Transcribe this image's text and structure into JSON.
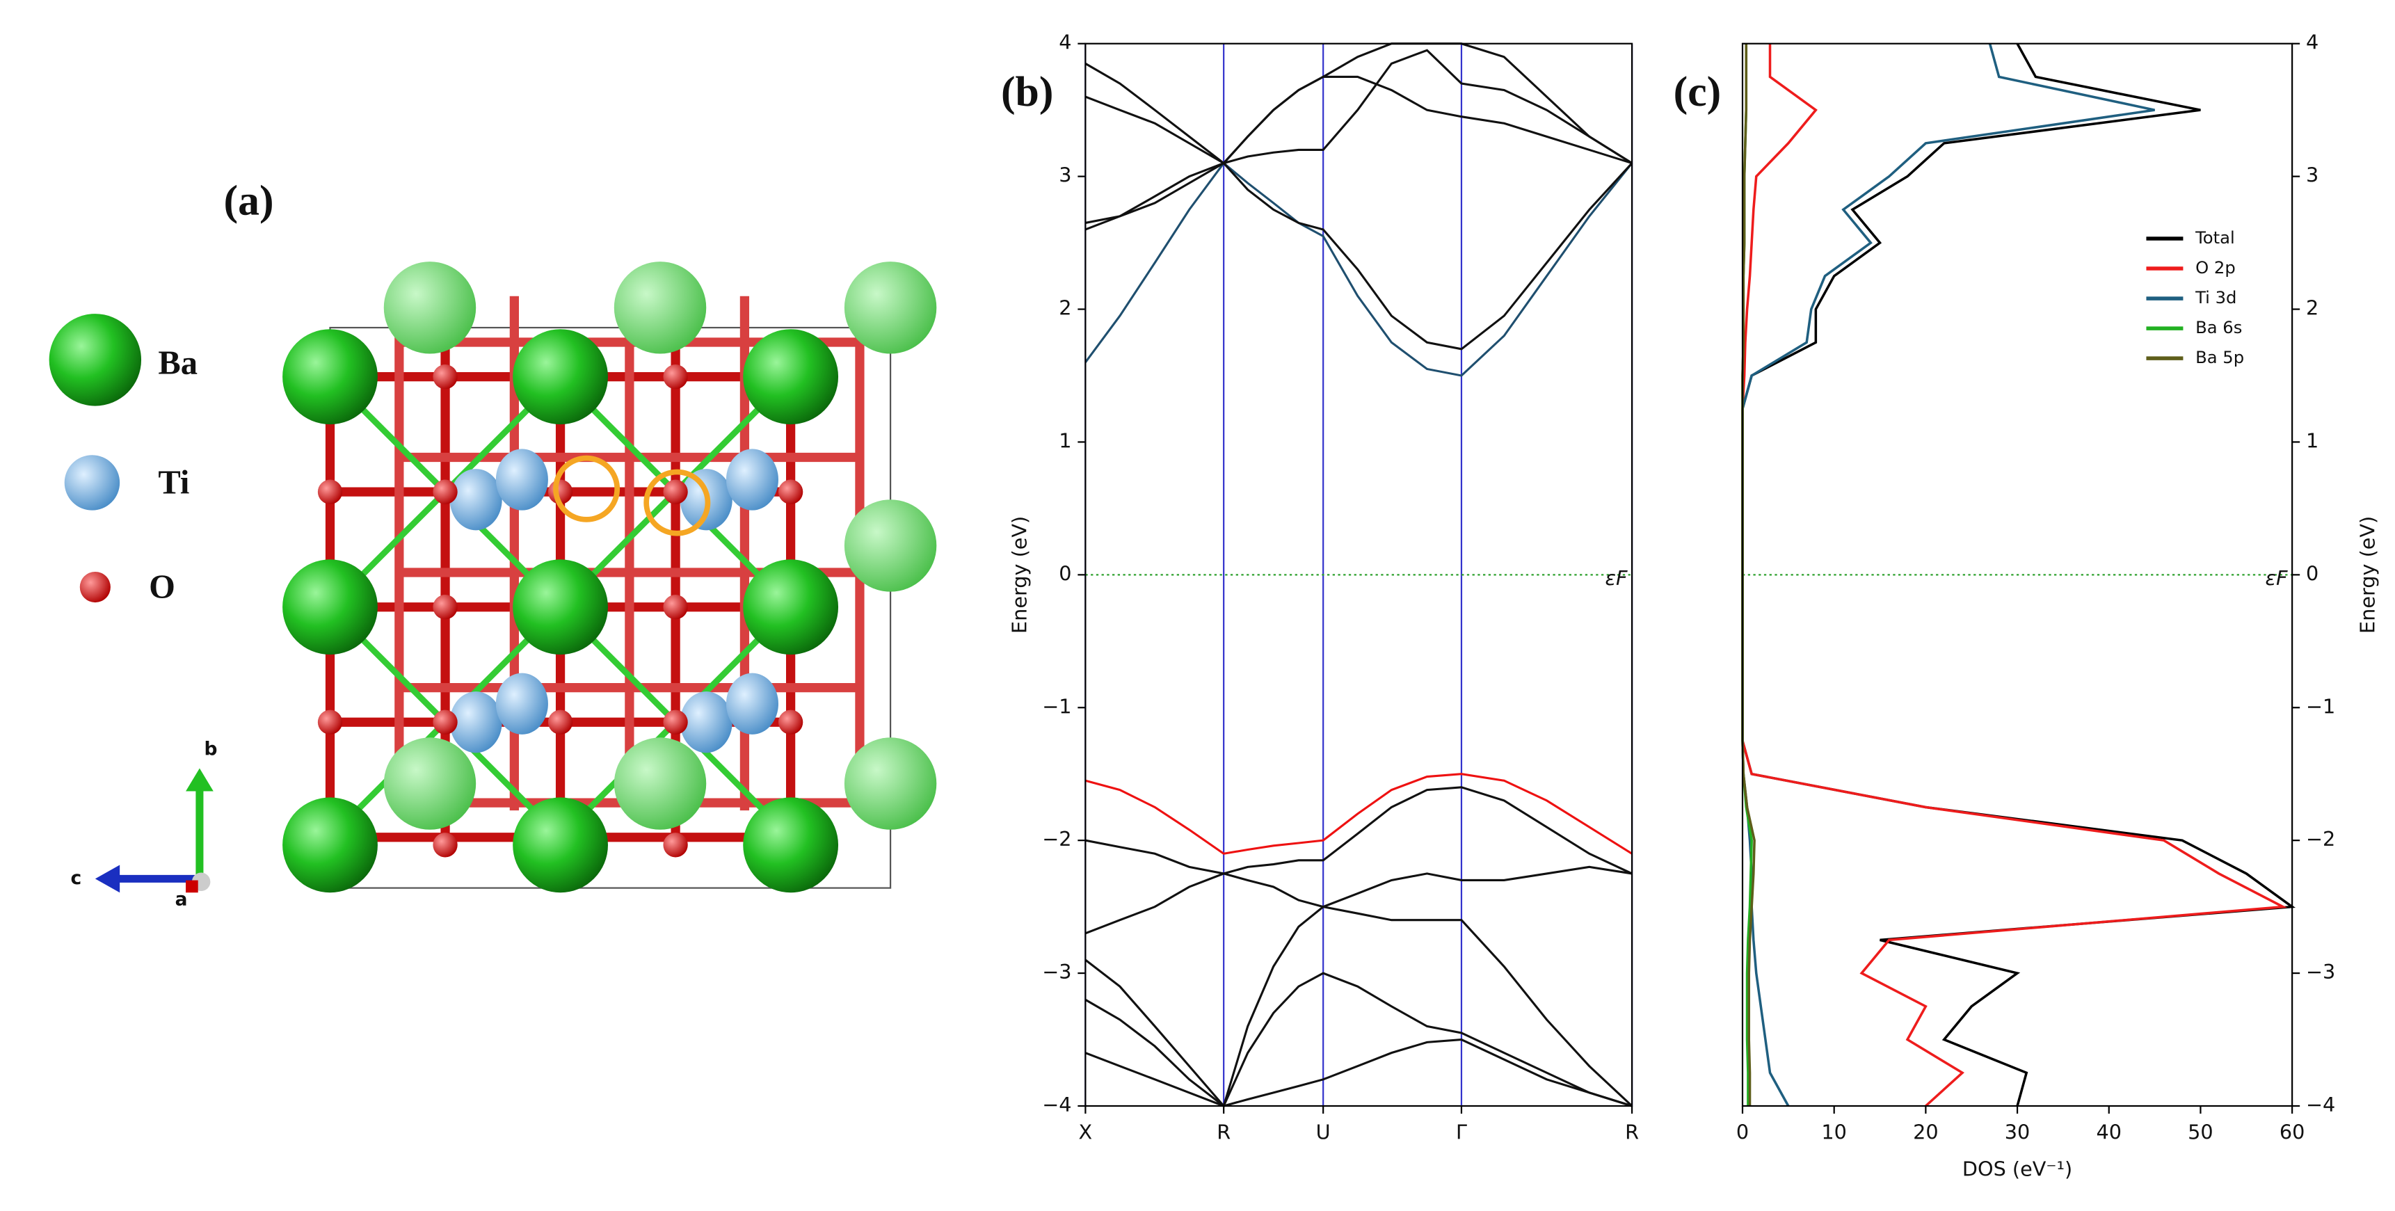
{
  "structure": {
    "panel_label": "(a)",
    "legend": [
      "Ba",
      "Ti",
      "O"
    ],
    "axes": [
      "b",
      "c",
      "a"
    ]
  },
  "chart_data": [
    {
      "type": "line",
      "panel_label": "(b)",
      "ylabel": "Energy (eV)",
      "x": [
        0,
        0.063,
        0.127,
        0.19,
        0.253,
        0.297,
        0.344,
        0.39,
        0.435,
        0.498,
        0.56,
        0.625,
        0.688,
        0.766,
        0.844,
        0.922,
        1.0
      ],
      "xlim": [
        0,
        1
      ],
      "xticks": [
        {
          "value": 0,
          "label": "X"
        },
        {
          "value": 0.253,
          "label": "R"
        },
        {
          "value": 0.435,
          "label": "U"
        },
        {
          "value": 0.688,
          "label": "Γ"
        },
        {
          "value": 1.0,
          "label": "R"
        }
      ],
      "ylim": [
        -4,
        4
      ],
      "yticks": [
        {
          "value": -4,
          "label": "−4"
        },
        {
          "value": -3,
          "label": "−3"
        },
        {
          "value": -2,
          "label": "−2"
        },
        {
          "value": -1,
          "label": "−1"
        },
        0,
        1,
        2,
        3,
        4
      ],
      "grid_color": "#3333cc",
      "fermi_level": 0,
      "fermi_label": "εF",
      "fermi_color": "#2ca02c",
      "series": [
        {
          "color": "#1f4f6f",
          "values": [
            1.6,
            1.95,
            2.35,
            2.75,
            3.1,
            2.95,
            2.8,
            2.65,
            2.55,
            2.1,
            1.75,
            1.55,
            1.5,
            1.8,
            2.25,
            2.7,
            3.1
          ]
        },
        {
          "color": "#111111",
          "values": [
            2.65,
            2.7,
            2.8,
            2.95,
            3.1,
            2.9,
            2.75,
            2.65,
            2.6,
            2.3,
            1.95,
            1.75,
            1.7,
            1.95,
            2.35,
            2.75,
            3.1
          ]
        },
        {
          "color": "#111111",
          "values": [
            2.6,
            2.7,
            2.85,
            3.0,
            3.1,
            3.3,
            3.5,
            3.65,
            3.75,
            3.75,
            3.65,
            3.5,
            3.45,
            3.4,
            3.3,
            3.2,
            3.1
          ]
        },
        {
          "color": "#111111",
          "values": [
            3.6,
            3.5,
            3.4,
            3.25,
            3.1,
            3.15,
            3.18,
            3.2,
            3.2,
            3.5,
            3.85,
            3.95,
            3.7,
            3.65,
            3.5,
            3.3,
            3.1
          ]
        },
        {
          "color": "#111111",
          "values": [
            3.85,
            3.7,
            3.5,
            3.3,
            3.1,
            3.3,
            3.5,
            3.65,
            3.75,
            3.9,
            4.0,
            4.0,
            4.0,
            3.9,
            3.6,
            3.3,
            3.1
          ]
        },
        {
          "color": "#ee1111",
          "values": [
            -1.55,
            -1.62,
            -1.75,
            -1.92,
            -2.1,
            -2.07,
            -2.04,
            -2.02,
            -2.0,
            -1.8,
            -1.62,
            -1.52,
            -1.5,
            -1.55,
            -1.7,
            -1.9,
            -2.1
          ]
        },
        {
          "color": "#111111",
          "values": [
            -2.0,
            -2.05,
            -2.1,
            -2.2,
            -2.25,
            -2.2,
            -2.18,
            -2.15,
            -2.15,
            -1.95,
            -1.75,
            -1.62,
            -1.6,
            -1.7,
            -1.9,
            -2.1,
            -2.25
          ]
        },
        {
          "color": "#111111",
          "values": [
            -2.7,
            -2.6,
            -2.5,
            -2.35,
            -2.25,
            -2.3,
            -2.35,
            -2.45,
            -2.5,
            -2.4,
            -2.3,
            -2.25,
            -2.3,
            -2.3,
            -2.25,
            -2.2,
            -2.25
          ]
        },
        {
          "color": "#111111",
          "values": [
            -2.9,
            -3.1,
            -3.4,
            -3.7,
            -4.0,
            -3.4,
            -2.95,
            -2.65,
            -2.5,
            -2.55,
            -2.6,
            -2.6,
            -2.6,
            -2.95,
            -3.35,
            -3.7,
            -4.0
          ]
        },
        {
          "color": "#111111",
          "values": [
            -3.2,
            -3.35,
            -3.55,
            -3.8,
            -4.0,
            -3.6,
            -3.3,
            -3.1,
            -3.0,
            -3.1,
            -3.25,
            -3.4,
            -3.45,
            -3.6,
            -3.75,
            -3.9,
            -4.0
          ]
        },
        {
          "color": "#111111",
          "values": [
            -3.6,
            -3.7,
            -3.8,
            -3.9,
            -4.0,
            -3.95,
            -3.9,
            -3.85,
            -3.8,
            -3.7,
            -3.6,
            -3.52,
            -3.5,
            -3.65,
            -3.8,
            -3.9,
            -4.0
          ]
        }
      ]
    },
    {
      "type": "line",
      "orientation": "horizontal",
      "panel_label": "(c)",
      "xlabel": "DOS (eV⁻¹)",
      "ylabel": "Energy (eV)",
      "y_axis_side": "right",
      "xlim": [
        0,
        60
      ],
      "xticks": [
        0,
        10,
        20,
        30,
        40,
        50,
        60
      ],
      "ylim": [
        -4,
        4
      ],
      "yticks": [
        {
          "value": -4,
          "label": "−4"
        },
        {
          "value": -3,
          "label": "−3"
        },
        {
          "value": -2,
          "label": "−2"
        },
        {
          "value": -1,
          "label": "−1"
        },
        0,
        1,
        2,
        3,
        4
      ],
      "fermi_level": 0,
      "fermi_label": "εF",
      "fermi_color": "#2ca02c",
      "legend": "upper right",
      "y": [
        -4,
        -3.75,
        -3.5,
        -3.25,
        -3,
        -2.75,
        -2.5,
        -2.25,
        -2,
        -1.75,
        -1.5,
        -1.25,
        -1,
        -0.75,
        -0.5,
        -0.25,
        0,
        0.25,
        0.5,
        0.75,
        1,
        1.25,
        1.5,
        1.75,
        2,
        2.25,
        2.5,
        2.75,
        3,
        3.25,
        3.5,
        3.75,
        4
      ],
      "series": [
        {
          "name": "Total",
          "color": "#000000",
          "values": [
            30,
            31,
            22,
            25,
            30,
            15,
            60,
            55,
            48,
            20,
            1,
            0,
            0,
            0,
            0,
            0,
            0,
            0,
            0,
            0,
            0,
            0,
            1,
            8,
            8,
            10,
            15,
            12,
            18,
            22,
            50,
            32,
            30
          ]
        },
        {
          "name": "O 2p",
          "color": "#ee1c1c",
          "values": [
            20,
            24,
            18,
            20,
            13,
            16,
            59,
            52,
            46,
            20,
            1,
            0,
            0,
            0,
            0,
            0,
            0,
            0,
            0,
            0,
            0,
            0,
            0.2,
            0.3,
            0.5,
            0.8,
            1,
            1.2,
            1.5,
            5,
            8,
            3,
            3
          ]
        },
        {
          "name": "Ti 3d",
          "color": "#1f5f80",
          "values": [
            5,
            3,
            2.5,
            2,
            1.5,
            1.2,
            1,
            1,
            0.8,
            0.5,
            0.1,
            0,
            0,
            0,
            0,
            0,
            0,
            0,
            0,
            0,
            0,
            0,
            1,
            7,
            7.5,
            9,
            14,
            11,
            16,
            20,
            45,
            28,
            27
          ]
        },
        {
          "name": "Ba 6s",
          "color": "#22b022",
          "values": [
            0.6,
            0.6,
            0.5,
            0.5,
            0.5,
            0.6,
            0.8,
            0.9,
            1,
            0.4,
            0.1,
            0,
            0,
            0,
            0,
            0,
            0,
            0,
            0,
            0,
            0,
            0,
            0,
            0.1,
            0.1,
            0.1,
            0.2,
            0.2,
            0.2,
            0.3,
            0.4,
            0.4,
            0.4
          ]
        },
        {
          "name": "Ba 5p",
          "color": "#5e5e1a",
          "values": [
            0.8,
            0.8,
            0.7,
            0.7,
            0.7,
            0.8,
            1,
            1.2,
            1.3,
            0.5,
            0.1,
            0,
            0,
            0,
            0,
            0,
            0,
            0,
            0,
            0,
            0,
            0,
            0,
            0.1,
            0.1,
            0.1,
            0.2,
            0.2,
            0.2,
            0.3,
            0.4,
            0.4,
            0.4
          ]
        }
      ]
    }
  ]
}
